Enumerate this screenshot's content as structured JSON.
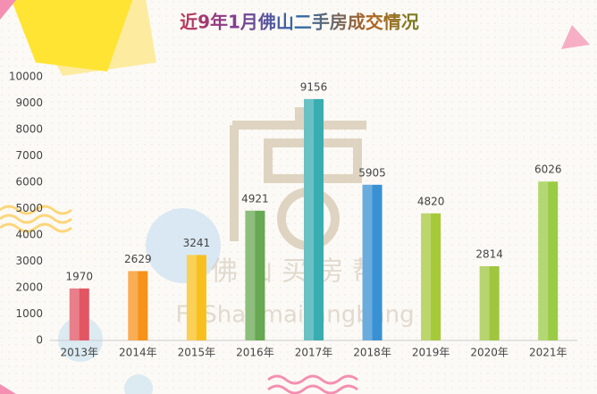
{
  "chart_data": {
    "type": "bar",
    "title": "近9年1月佛山二手房成交情况",
    "categories": [
      "2013年",
      "2014年",
      "2015年",
      "2016年",
      "2017年",
      "2018年",
      "2019年",
      "2020年",
      "2021年"
    ],
    "values": [
      1970,
      2629,
      3241,
      4921,
      9156,
      5905,
      4820,
      2814,
      6026
    ],
    "colors": [
      "#e25563",
      "#f7921b",
      "#f8c01e",
      "#67a852",
      "#39adb0",
      "#3891d3",
      "#a6c93a",
      "#9fc63e",
      "#9acb45"
    ],
    "ylim": [
      0,
      10000
    ],
    "yticks": [
      0,
      1000,
      2000,
      3000,
      4000,
      5000,
      6000,
      7000,
      8000,
      9000,
      10000
    ]
  },
  "watermark": {
    "chinese": "佛 山 买 房 帮",
    "latin": "FoShanmaifangbang"
  }
}
